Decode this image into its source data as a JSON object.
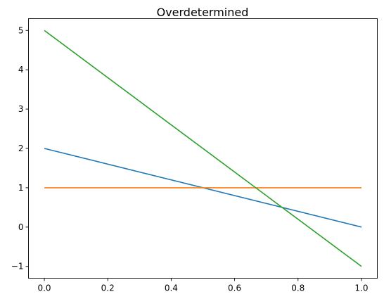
{
  "chart_data": {
    "type": "line",
    "title": "Overdetermined",
    "xlabel": "",
    "ylabel": "",
    "xlim": [
      -0.05,
      1.05
    ],
    "ylim": [
      -1.3,
      5.3
    ],
    "grid": false,
    "x_ticks": [
      0.0,
      0.2,
      0.4,
      0.6,
      0.8,
      1.0
    ],
    "x_tick_labels": [
      "0.0",
      "0.2",
      "0.4",
      "0.6",
      "0.8",
      "1.0"
    ],
    "y_ticks": [
      -1,
      0,
      1,
      2,
      3,
      4,
      5
    ],
    "y_tick_labels": [
      "−1",
      "0",
      "1",
      "2",
      "3",
      "4",
      "5"
    ],
    "series": [
      {
        "color": "#1f77b4",
        "x": [
          0,
          1
        ],
        "y": [
          2,
          0
        ]
      },
      {
        "color": "#ff7f0e",
        "x": [
          0,
          1
        ],
        "y": [
          1,
          1
        ]
      },
      {
        "color": "#2ca02c",
        "x": [
          0,
          1
        ],
        "y": [
          5,
          -1
        ]
      }
    ]
  }
}
